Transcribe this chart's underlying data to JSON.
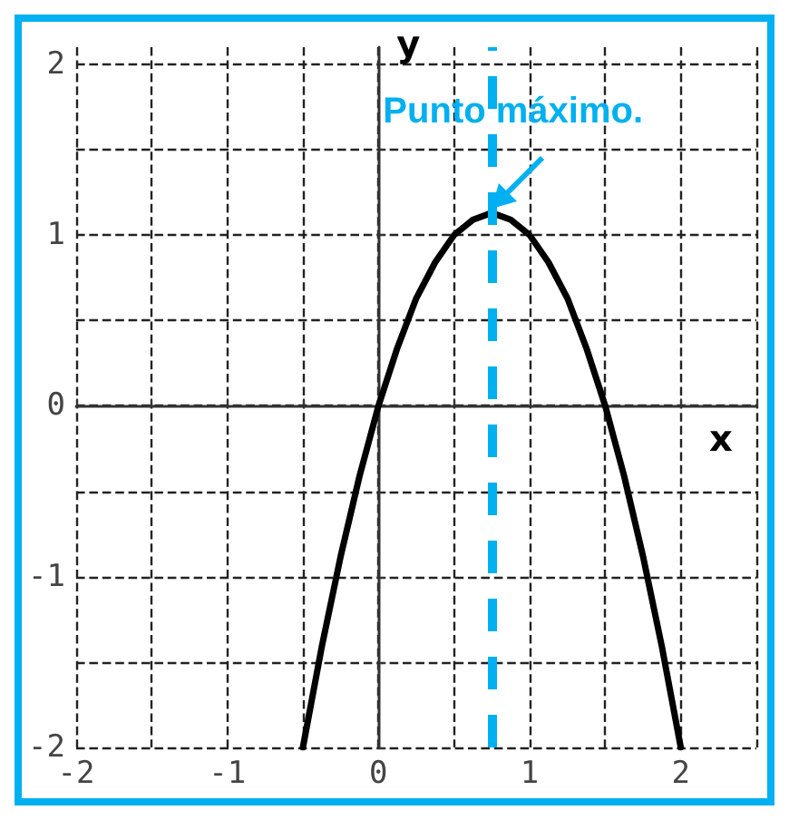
{
  "chart_data": {
    "type": "line",
    "xlabel": "x",
    "ylabel": "y",
    "xlim": [
      -2,
      2.5
    ],
    "ylim": [
      -2,
      2.1
    ],
    "xticks": [
      -2,
      {
        "value": -1.5,
        "label": null
      },
      -1,
      {
        "value": -0.5,
        "label": null
      },
      0,
      {
        "value": 0.5,
        "label": null
      },
      1,
      {
        "value": 1.5,
        "label": null
      },
      2,
      {
        "value": 2.5,
        "label": null
      }
    ],
    "yticks": [
      -2,
      {
        "value": -1.5,
        "label": null
      },
      -1,
      {
        "value": -0.5,
        "label": null
      },
      0,
      {
        "value": 0.5,
        "label": null
      },
      1,
      {
        "value": 1.5,
        "label": null
      },
      2
    ],
    "grid": true,
    "marker": "none",
    "line_style": "solid",
    "series": [
      {
        "color": "#000000",
        "x": [
          -0.5,
          -0.375,
          -0.25,
          -0.125,
          0,
          0.125,
          0.25,
          0.375,
          0.5,
          0.625,
          0.75,
          0.875,
          1,
          1.125,
          1.25,
          1.375,
          1.5,
          1.625,
          1.75,
          1.875,
          2
        ],
        "values": [
          -2,
          -1.41,
          -0.88,
          -0.41,
          0,
          0.34,
          0.63,
          0.84,
          1,
          1.09,
          1.13,
          1.09,
          1,
          0.84,
          0.63,
          0.34,
          0,
          -0.41,
          -0.88,
          -1.41,
          -2
        ]
      }
    ],
    "ref_lines": [
      {
        "axis": "x",
        "value": 0.75,
        "color": "#00b0f0",
        "line_style": "dashed"
      }
    ],
    "annotations": [
      {
        "text": "Punto máximo.",
        "x": 0.75,
        "y": 1.13
      }
    ]
  }
}
